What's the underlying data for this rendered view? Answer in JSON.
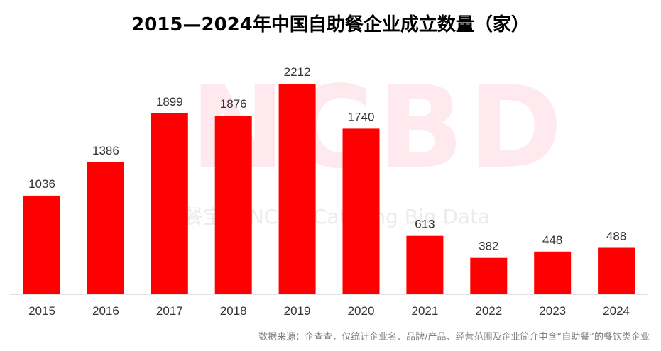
{
  "chart_data": {
    "type": "bar",
    "title": "2015—2024年中国自助餐企业成立数量（家）",
    "categories": [
      "2015",
      "2016",
      "2017",
      "2018",
      "2019",
      "2020",
      "2021",
      "2022",
      "2023",
      "2024"
    ],
    "values": [
      1036,
      1386,
      1899,
      1876,
      2212,
      1740,
      613,
      382,
      448,
      488
    ],
    "xlabel": "",
    "ylabel": "",
    "ylim": [
      0,
      2500
    ],
    "grid": false,
    "bar_color": "#ff0000",
    "source": "数据来源：企查查，仅统计企业名、品牌/产品、经营范围及企业简介中含“自助餐”的餐饮类企业"
  },
  "watermark": {
    "logo": "NCBD",
    "subtitle": "餐宝典 NCBD Catering Big Data"
  }
}
